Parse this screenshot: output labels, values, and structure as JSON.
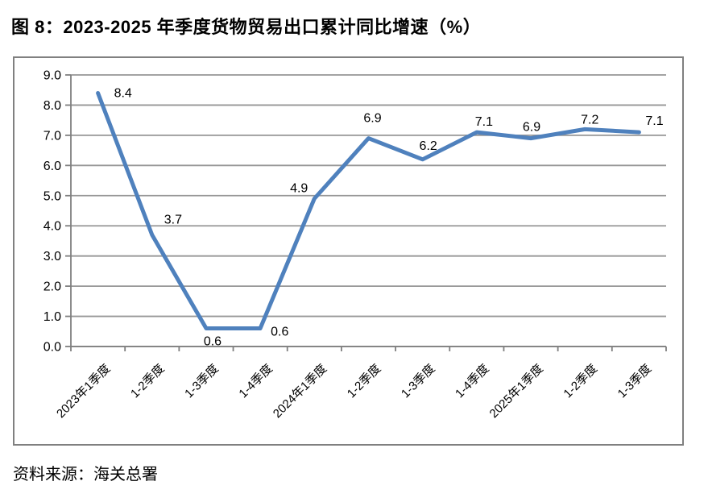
{
  "page": {
    "title": "图 8：2023-2025 年季度货物贸易出口累计同比增速（%）",
    "source": "资料来源：海关总署"
  },
  "chart_data": {
    "type": "line",
    "title": "2023-2025 年季度货物贸易出口累计同比增速（%）",
    "categories": [
      "2023年1季度",
      "1-2季度",
      "1-3季度",
      "1-4季度",
      "2024年1季度",
      "1-2季度",
      "1-3季度",
      "1-4季度",
      "2025年1季度",
      "1-2季度",
      "1-3季度"
    ],
    "values": [
      8.4,
      3.7,
      0.6,
      0.6,
      4.9,
      6.9,
      6.2,
      7.1,
      6.9,
      7.2,
      7.1
    ],
    "data_labels": [
      "8.4",
      "3.7",
      "0.6",
      "0.6",
      "4.9",
      "6.9",
      "6.2",
      "7.1",
      "6.9",
      "7.2",
      "7.1"
    ],
    "xlabel": "",
    "ylabel": "",
    "ylim": [
      0,
      9
    ],
    "ytick_step": 1,
    "ytick_labels": [
      "0.0",
      "1.0",
      "2.0",
      "3.0",
      "4.0",
      "5.0",
      "6.0",
      "7.0",
      "8.0",
      "9.0"
    ],
    "grid": true,
    "legend": "none",
    "colors": {
      "line": "#4F81BD",
      "gridline": "#969696",
      "axis": "#7F7F7F",
      "frame_border": "#808080",
      "text": "#000000"
    }
  }
}
